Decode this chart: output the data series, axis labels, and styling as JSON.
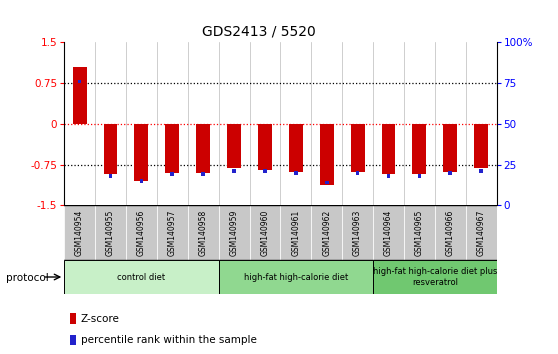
{
  "title": "GDS2413 / 5520",
  "samples": [
    "GSM140954",
    "GSM140955",
    "GSM140956",
    "GSM140957",
    "GSM140958",
    "GSM140959",
    "GSM140960",
    "GSM140961",
    "GSM140962",
    "GSM140963",
    "GSM140964",
    "GSM140965",
    "GSM140966",
    "GSM140967"
  ],
  "z_scores": [
    1.05,
    -0.92,
    -1.05,
    -0.9,
    -0.9,
    -0.82,
    -0.85,
    -0.88,
    -1.12,
    -0.88,
    -0.92,
    -0.92,
    -0.88,
    -0.82
  ],
  "pct_values": [
    76,
    18,
    15,
    19,
    19,
    21,
    21,
    20,
    14,
    20,
    18,
    18,
    20,
    21
  ],
  "bar_color": "#cc0000",
  "pct_color": "#2222cc",
  "ylim": [
    -1.5,
    1.5
  ],
  "y_ticks_left": [
    -1.5,
    -0.75,
    0,
    0.75,
    1.5
  ],
  "y_ticks_right_labels": [
    "0",
    "25",
    "50",
    "75",
    "100%"
  ],
  "dotted_lines_black": [
    -0.75,
    0.75
  ],
  "dotted_line_red": 0,
  "protocols": [
    {
      "label": "control diet",
      "start": 0,
      "end": 5,
      "color": "#c8f0c8"
    },
    {
      "label": "high-fat high-calorie diet",
      "start": 5,
      "end": 10,
      "color": "#90d890"
    },
    {
      "label": "high-fat high-calorie diet plus\nresveratrol",
      "start": 10,
      "end": 14,
      "color": "#70c870"
    }
  ],
  "legend_z_label": "Z-score",
  "legend_pct_label": "percentile rank within the sample",
  "protocol_label": "protocol",
  "bg_color": "#ffffff",
  "sample_bg": "#c8c8c8",
  "bar_width": 0.45,
  "pct_bar_width": 0.12
}
